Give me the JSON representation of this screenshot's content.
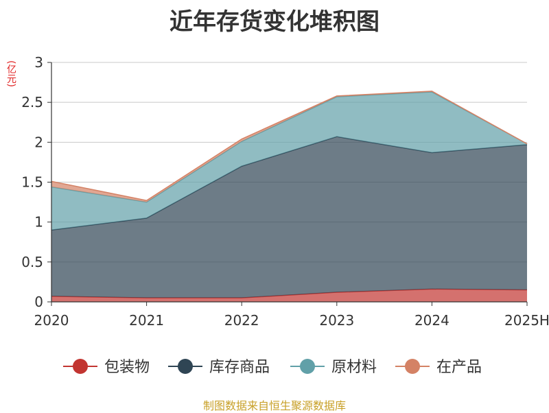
{
  "chart_data": {
    "type": "area",
    "stacked": true,
    "title": "近年存货变化堆积图",
    "unit_label": "(亿元)",
    "categories": [
      "2020",
      "2021",
      "2022",
      "2023",
      "2024",
      "2025H"
    ],
    "series": [
      {
        "name": "包装物",
        "color": "#c23531",
        "values": [
          0.07,
          0.05,
          0.05,
          0.12,
          0.16,
          0.15
        ]
      },
      {
        "name": "库存商品",
        "color": "#2f4554",
        "values": [
          0.83,
          1.0,
          1.65,
          1.95,
          1.71,
          1.82
        ]
      },
      {
        "name": "原材料",
        "color": "#61a0a8",
        "values": [
          0.54,
          0.2,
          0.31,
          0.5,
          0.76,
          0.01
        ]
      },
      {
        "name": "在产品",
        "color": "#d48265",
        "values": [
          0.07,
          0.02,
          0.03,
          0.01,
          0.01,
          0.0
        ]
      }
    ],
    "y_ticks": [
      "0",
      "0.5",
      "1",
      "1.5",
      "2",
      "2.5",
      "3"
    ],
    "ylim": [
      0,
      3
    ],
    "grid": true,
    "legend_position": "bottom"
  },
  "source_text": "制图数据来自恒生聚源数据库"
}
